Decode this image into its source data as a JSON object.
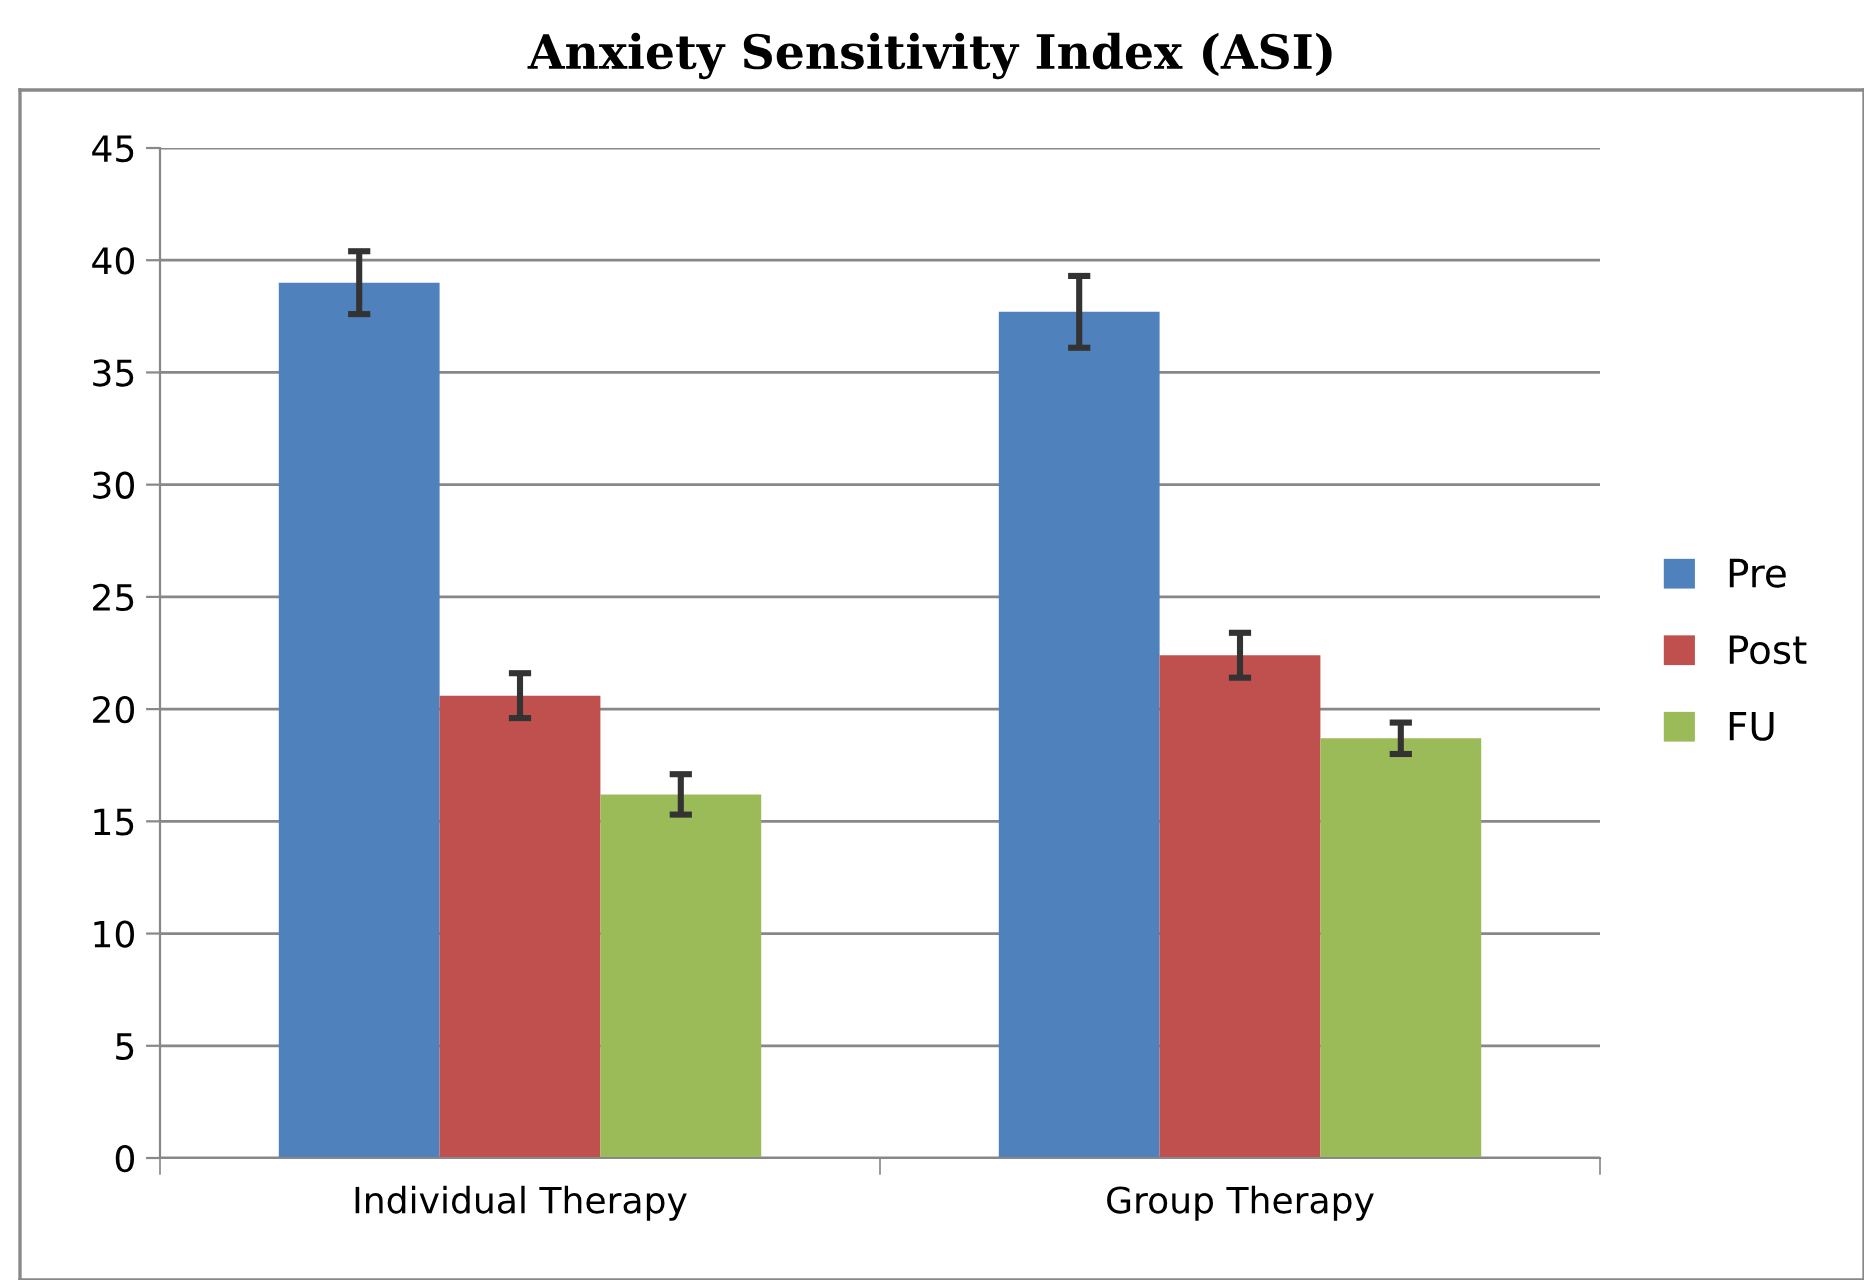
{
  "chart_data": {
    "type": "bar",
    "title": "Anxiety Sensitivity Index (ASI)",
    "categories": [
      "Individual Therapy",
      "Group Therapy"
    ],
    "series": [
      {
        "name": "Pre",
        "color": "#4f81bd",
        "values": [
          39.0,
          37.7
        ],
        "errors": [
          1.4,
          1.6
        ]
      },
      {
        "name": "Post",
        "color": "#c0504d",
        "values": [
          20.6,
          22.4
        ],
        "errors": [
          1.0,
          1.0
        ]
      },
      {
        "name": "FU",
        "color": "#9bbb59",
        "values": [
          16.2,
          18.7
        ],
        "errors": [
          0.9,
          0.7
        ]
      }
    ],
    "ylim": [
      0,
      45
    ],
    "yticks": [
      0,
      5,
      10,
      15,
      20,
      25,
      30,
      35,
      40,
      45
    ],
    "grid": "y",
    "legend": "right"
  }
}
